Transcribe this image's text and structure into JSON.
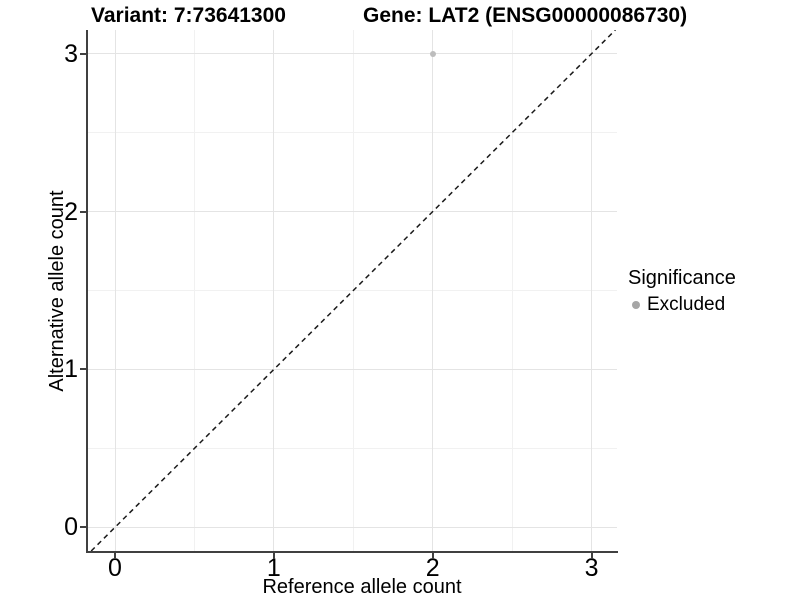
{
  "chart_data": {
    "type": "scatter",
    "title_left": "Variant: 7:73641300",
    "title_right": "Gene: LAT2 (ENSG00000086730)",
    "xlabel": "Reference allele count",
    "ylabel": "Alternative allele count",
    "xlim": [
      -0.17,
      3.16
    ],
    "ylim": [
      -0.15,
      3.15
    ],
    "x_ticks": [
      0,
      1,
      2,
      3
    ],
    "y_ticks": [
      0,
      1,
      2,
      3
    ],
    "x_minor_ticks": [
      0.5,
      1.5,
      2.5
    ],
    "y_minor_ticks": [
      0.5,
      1.5,
      2.5
    ],
    "grid": "major and minor gridlines, light gray on white",
    "legend_position": "right",
    "legend_title": "Significance",
    "series": [
      {
        "name": "Excluded",
        "color": "#bdbdbd",
        "points": [
          {
            "x": 2,
            "y": 3
          }
        ]
      }
    ],
    "reference_line": {
      "kind": "identity y=x",
      "slope": 1,
      "intercept": 0,
      "style": "dashed",
      "color": "#1a1a1a"
    }
  },
  "colors": {
    "background": "#ffffff",
    "axis_line": "#404040",
    "grid_major": "#e4e4e4",
    "grid_minor": "#f1f1f1",
    "text": "#000000",
    "point_excluded": "#bdbdbd",
    "legend_key": "#a6a6a6"
  }
}
